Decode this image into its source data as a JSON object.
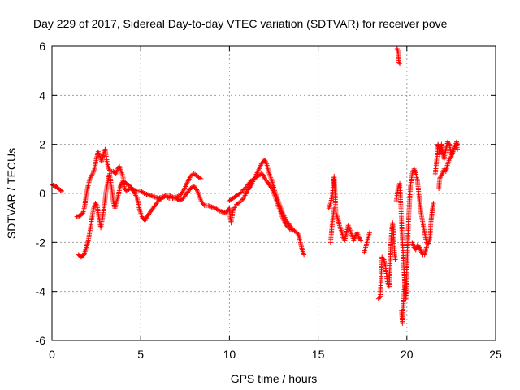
{
  "chart_data": {
    "type": "scatter",
    "title": "Day 229 of 2017, Sidereal Day-to-day VTEC variation (SDTVAR) for receiver pove",
    "xlabel": "GPS time / hours",
    "ylabel": "SDTVAR / TECUs",
    "xlim": [
      0,
      25
    ],
    "ylim": [
      -6,
      6
    ],
    "xticks": [
      0,
      5,
      10,
      15,
      20,
      25
    ],
    "yticks": [
      -6,
      -4,
      -2,
      0,
      2,
      4,
      6
    ],
    "xtick_labels": [
      "0",
      "5",
      "10",
      "15",
      "20",
      "25"
    ],
    "ytick_labels": [
      "-6",
      "-4",
      "-2",
      "0",
      "2",
      "4",
      "6"
    ],
    "grid": true,
    "marker": "+",
    "color": "#ff0000",
    "series": [
      {
        "name": "SDTVAR",
        "segments": [
          [
            [
              0.0,
              0.35
            ],
            [
              0.2,
              0.3
            ],
            [
              0.35,
              0.2
            ],
            [
              0.55,
              0.1
            ]
          ],
          [
            [
              1.4,
              -0.95
            ],
            [
              1.6,
              -0.9
            ],
            [
              1.75,
              -0.8
            ],
            [
              1.85,
              -0.5
            ],
            [
              1.9,
              -0.2
            ],
            [
              2.0,
              0.2
            ],
            [
              2.1,
              0.5
            ],
            [
              2.2,
              0.7
            ],
            [
              2.3,
              0.8
            ],
            [
              2.4,
              1.0
            ],
            [
              2.5,
              1.4
            ],
            [
              2.6,
              1.7
            ],
            [
              2.7,
              1.5
            ],
            [
              2.8,
              1.3
            ],
            [
              2.9,
              1.6
            ],
            [
              3.0,
              1.8
            ],
            [
              3.1,
              1.3
            ],
            [
              3.2,
              1.0
            ],
            [
              3.3,
              0.9
            ],
            [
              3.45,
              0.9
            ],
            [
              3.6,
              0.8
            ],
            [
              3.7,
              1.0
            ],
            [
              3.8,
              1.1
            ],
            [
              3.9,
              0.9
            ],
            [
              4.0,
              0.7
            ],
            [
              4.1,
              0.2
            ],
            [
              4.2,
              0.1
            ],
            [
              4.4,
              0.2
            ],
            [
              4.6,
              0.15
            ],
            [
              4.8,
              0.1
            ],
            [
              5.0,
              0.1
            ],
            [
              5.2,
              0.0
            ],
            [
              5.4,
              -0.05
            ],
            [
              5.6,
              -0.1
            ],
            [
              5.8,
              -0.15
            ],
            [
              6.0,
              -0.2
            ],
            [
              6.2,
              -0.15
            ],
            [
              6.4,
              -0.1
            ],
            [
              6.6,
              -0.2
            ],
            [
              6.8,
              -0.2
            ],
            [
              7.0,
              -0.15
            ],
            [
              7.2,
              -0.1
            ],
            [
              7.4,
              0.1
            ],
            [
              7.6,
              0.4
            ],
            [
              7.8,
              0.7
            ],
            [
              8.0,
              0.8
            ],
            [
              8.2,
              0.7
            ],
            [
              8.4,
              0.6
            ]
          ],
          [
            [
              1.5,
              -2.5
            ],
            [
              1.65,
              -2.6
            ],
            [
              1.8,
              -2.5
            ],
            [
              1.95,
              -2.2
            ],
            [
              2.05,
              -1.9
            ],
            [
              2.15,
              -1.5
            ],
            [
              2.25,
              -1.0
            ],
            [
              2.35,
              -0.6
            ],
            [
              2.45,
              -0.4
            ],
            [
              2.55,
              -0.5
            ],
            [
              2.65,
              -1.0
            ],
            [
              2.75,
              -1.4
            ],
            [
              2.85,
              -1.0
            ],
            [
              2.95,
              -0.5
            ],
            [
              3.05,
              0.1
            ],
            [
              3.15,
              0.5
            ],
            [
              3.25,
              0.8
            ],
            [
              3.35,
              0.3
            ],
            [
              3.45,
              -0.3
            ],
            [
              3.55,
              -0.6
            ],
            [
              3.7,
              -0.2
            ],
            [
              3.85,
              0.3
            ],
            [
              4.0,
              0.5
            ],
            [
              4.2,
              0.4
            ],
            [
              4.4,
              0.3
            ],
            [
              4.6,
              0.1
            ],
            [
              4.8,
              -0.2
            ],
            [
              4.95,
              -0.7
            ],
            [
              5.1,
              -1.0
            ],
            [
              5.25,
              -1.1
            ],
            [
              5.4,
              -0.9
            ],
            [
              5.6,
              -0.7
            ],
            [
              5.8,
              -0.5
            ],
            [
              6.0,
              -0.3
            ],
            [
              6.2,
              -0.2
            ],
            [
              6.4,
              -0.1
            ],
            [
              6.6,
              -0.1
            ],
            [
              6.8,
              -0.15
            ],
            [
              7.0,
              -0.2
            ],
            [
              7.2,
              -0.3
            ],
            [
              7.4,
              -0.2
            ],
            [
              7.6,
              0.0
            ],
            [
              7.8,
              0.2
            ],
            [
              8.0,
              0.3
            ],
            [
              8.2,
              0.1
            ],
            [
              8.4,
              -0.3
            ],
            [
              8.6,
              -0.5
            ],
            [
              8.8,
              -0.5
            ],
            [
              9.0,
              -0.55
            ],
            [
              9.2,
              -0.6
            ],
            [
              9.4,
              -0.7
            ],
            [
              9.6,
              -0.75
            ],
            [
              9.8,
              -0.8
            ],
            [
              10.0,
              -0.6
            ],
            [
              10.05,
              -1.0
            ],
            [
              10.1,
              -1.2
            ],
            [
              10.2,
              -0.7
            ],
            [
              10.4,
              -0.45
            ],
            [
              10.6,
              -0.35
            ],
            [
              10.8,
              -0.2
            ],
            [
              11.0,
              0.1
            ],
            [
              11.2,
              0.3
            ],
            [
              11.4,
              0.6
            ],
            [
              11.6,
              0.9
            ],
            [
              11.8,
              1.2
            ],
            [
              11.9,
              1.3
            ],
            [
              12.0,
              1.35
            ],
            [
              12.1,
              1.2
            ],
            [
              12.2,
              0.9
            ],
            [
              12.4,
              0.5
            ],
            [
              12.6,
              0.0
            ],
            [
              12.8,
              -0.4
            ],
            [
              13.0,
              -0.8
            ],
            [
              13.2,
              -1.1
            ],
            [
              13.4,
              -1.3
            ],
            [
              13.6,
              -1.5
            ],
            [
              13.8,
              -1.6
            ],
            [
              13.9,
              -1.7
            ],
            [
              14.0,
              -2.0
            ],
            [
              14.1,
              -2.3
            ],
            [
              14.2,
              -2.5
            ]
          ],
          [
            [
              10.0,
              -0.3
            ],
            [
              10.2,
              -0.2
            ],
            [
              10.4,
              -0.1
            ],
            [
              10.6,
              0.0
            ],
            [
              10.8,
              0.15
            ],
            [
              11.0,
              0.3
            ],
            [
              11.2,
              0.5
            ],
            [
              11.4,
              0.6
            ],
            [
              11.6,
              0.7
            ],
            [
              11.8,
              0.8
            ],
            [
              11.9,
              0.75
            ],
            [
              12.0,
              0.6
            ],
            [
              12.2,
              0.4
            ],
            [
              12.4,
              0.2
            ],
            [
              12.6,
              -0.2
            ],
            [
              12.8,
              -0.6
            ],
            [
              13.0,
              -1.0
            ],
            [
              13.2,
              -1.3
            ],
            [
              13.4,
              -1.45
            ],
            [
              13.6,
              -1.5
            ]
          ],
          [
            [
              15.6,
              -0.6
            ],
            [
              15.7,
              -0.4
            ],
            [
              15.8,
              -0.1
            ],
            [
              15.85,
              0.4
            ],
            [
              15.9,
              0.7
            ],
            [
              15.95,
              0.1
            ],
            [
              16.0,
              -0.8
            ],
            [
              16.1,
              -1.0
            ],
            [
              16.2,
              -1.3
            ],
            [
              16.3,
              -1.5
            ],
            [
              16.4,
              -1.8
            ],
            [
              16.5,
              -1.9
            ],
            [
              16.6,
              -1.6
            ],
            [
              16.7,
              -1.3
            ],
            [
              16.8,
              -1.5
            ],
            [
              16.9,
              -1.7
            ],
            [
              17.0,
              -1.9
            ],
            [
              17.1,
              -1.75
            ],
            [
              17.2,
              -1.6
            ],
            [
              17.3,
              -1.8
            ],
            [
              17.4,
              -1.9
            ]
          ],
          [
            [
              15.7,
              -2.0
            ],
            [
              15.8,
              -1.2
            ],
            [
              15.9,
              -0.6
            ]
          ],
          [
            [
              17.9,
              -1.6
            ],
            [
              17.6,
              -2.4
            ]
          ],
          [
            [
              18.4,
              -4.3
            ],
            [
              18.5,
              -4.2
            ],
            [
              18.6,
              -2.6
            ],
            [
              18.7,
              -2.7
            ],
            [
              18.8,
              -3.0
            ],
            [
              18.9,
              -3.6
            ],
            [
              19.0,
              -3.8
            ],
            [
              19.1,
              -2.0
            ],
            [
              19.15,
              -1.5
            ],
            [
              19.2,
              -1.2
            ],
            [
              19.25,
              -1.6
            ],
            [
              19.3,
              -2.4
            ],
            [
              19.35,
              -2.7
            ]
          ],
          [
            [
              19.45,
              5.9
            ],
            [
              19.5,
              5.8
            ],
            [
              19.55,
              5.35
            ],
            [
              19.6,
              5.3
            ]
          ],
          [
            [
              19.4,
              -0.3
            ],
            [
              19.5,
              0.2
            ],
            [
              19.6,
              0.4
            ],
            [
              19.7,
              -1.1
            ],
            [
              19.75,
              -2.0
            ],
            [
              19.8,
              -2.6
            ],
            [
              19.85,
              -3.3
            ],
            [
              19.9,
              -3.9
            ],
            [
              19.95,
              -4.3
            ],
            [
              20.0,
              -3.1
            ],
            [
              20.05,
              -2.0
            ],
            [
              20.1,
              -1.0
            ],
            [
              20.15,
              -0.4
            ],
            [
              20.2,
              0.3
            ],
            [
              20.3,
              0.8
            ],
            [
              20.4,
              1.0
            ],
            [
              20.5,
              0.85
            ],
            [
              20.6,
              0.5
            ],
            [
              20.7,
              -0.2
            ],
            [
              20.8,
              -0.8
            ],
            [
              20.9,
              -1.2
            ],
            [
              21.0,
              -1.6
            ],
            [
              21.1,
              -2.0
            ],
            [
              21.2,
              -2.1
            ],
            [
              21.3,
              -1.8
            ],
            [
              21.35,
              -1.2
            ],
            [
              21.4,
              -0.9
            ],
            [
              21.45,
              -0.6
            ],
            [
              21.5,
              -0.4
            ]
          ],
          [
            [
              19.7,
              -4.8
            ],
            [
              19.75,
              -5.3
            ],
            [
              19.8,
              -4.5
            ],
            [
              19.85,
              -4.0
            ],
            [
              19.9,
              -3.5
            ]
          ],
          [
            [
              20.3,
              -2.0
            ],
            [
              20.4,
              -2.2
            ],
            [
              20.5,
              -2.3
            ],
            [
              20.6,
              -2.1
            ],
            [
              20.7,
              -2.2
            ],
            [
              20.8,
              -2.35
            ],
            [
              20.9,
              -2.5
            ],
            [
              21.0,
              -2.5
            ],
            [
              21.1,
              -2.2
            ]
          ],
          [
            [
              21.6,
              0.8
            ],
            [
              21.7,
              1.5
            ],
            [
              21.75,
              2.0
            ],
            [
              21.8,
              1.9
            ],
            [
              21.85,
              1.6
            ],
            [
              21.9,
              1.8
            ],
            [
              21.95,
              2.0
            ],
            [
              22.0,
              1.7
            ],
            [
              22.1,
              1.4
            ],
            [
              22.2,
              1.8
            ],
            [
              22.3,
              2.1
            ],
            [
              22.4,
              2.0
            ],
            [
              22.5,
              1.6
            ],
            [
              22.6,
              1.7
            ],
            [
              22.7,
              1.9
            ],
            [
              22.8,
              2.0
            ],
            [
              22.85,
              1.8
            ]
          ],
          [
            [
              21.8,
              0.2
            ],
            [
              21.85,
              0.6
            ],
            [
              21.9,
              0.7
            ],
            [
              22.0,
              0.8
            ],
            [
              22.1,
              1.0
            ],
            [
              22.2,
              0.9
            ],
            [
              22.3,
              1.2
            ],
            [
              22.4,
              1.4
            ],
            [
              22.5,
              1.5
            ],
            [
              22.6,
              1.7
            ],
            [
              22.7,
              1.9
            ],
            [
              22.8,
              2.1
            ],
            [
              22.85,
              2.0
            ]
          ]
        ]
      }
    ]
  }
}
